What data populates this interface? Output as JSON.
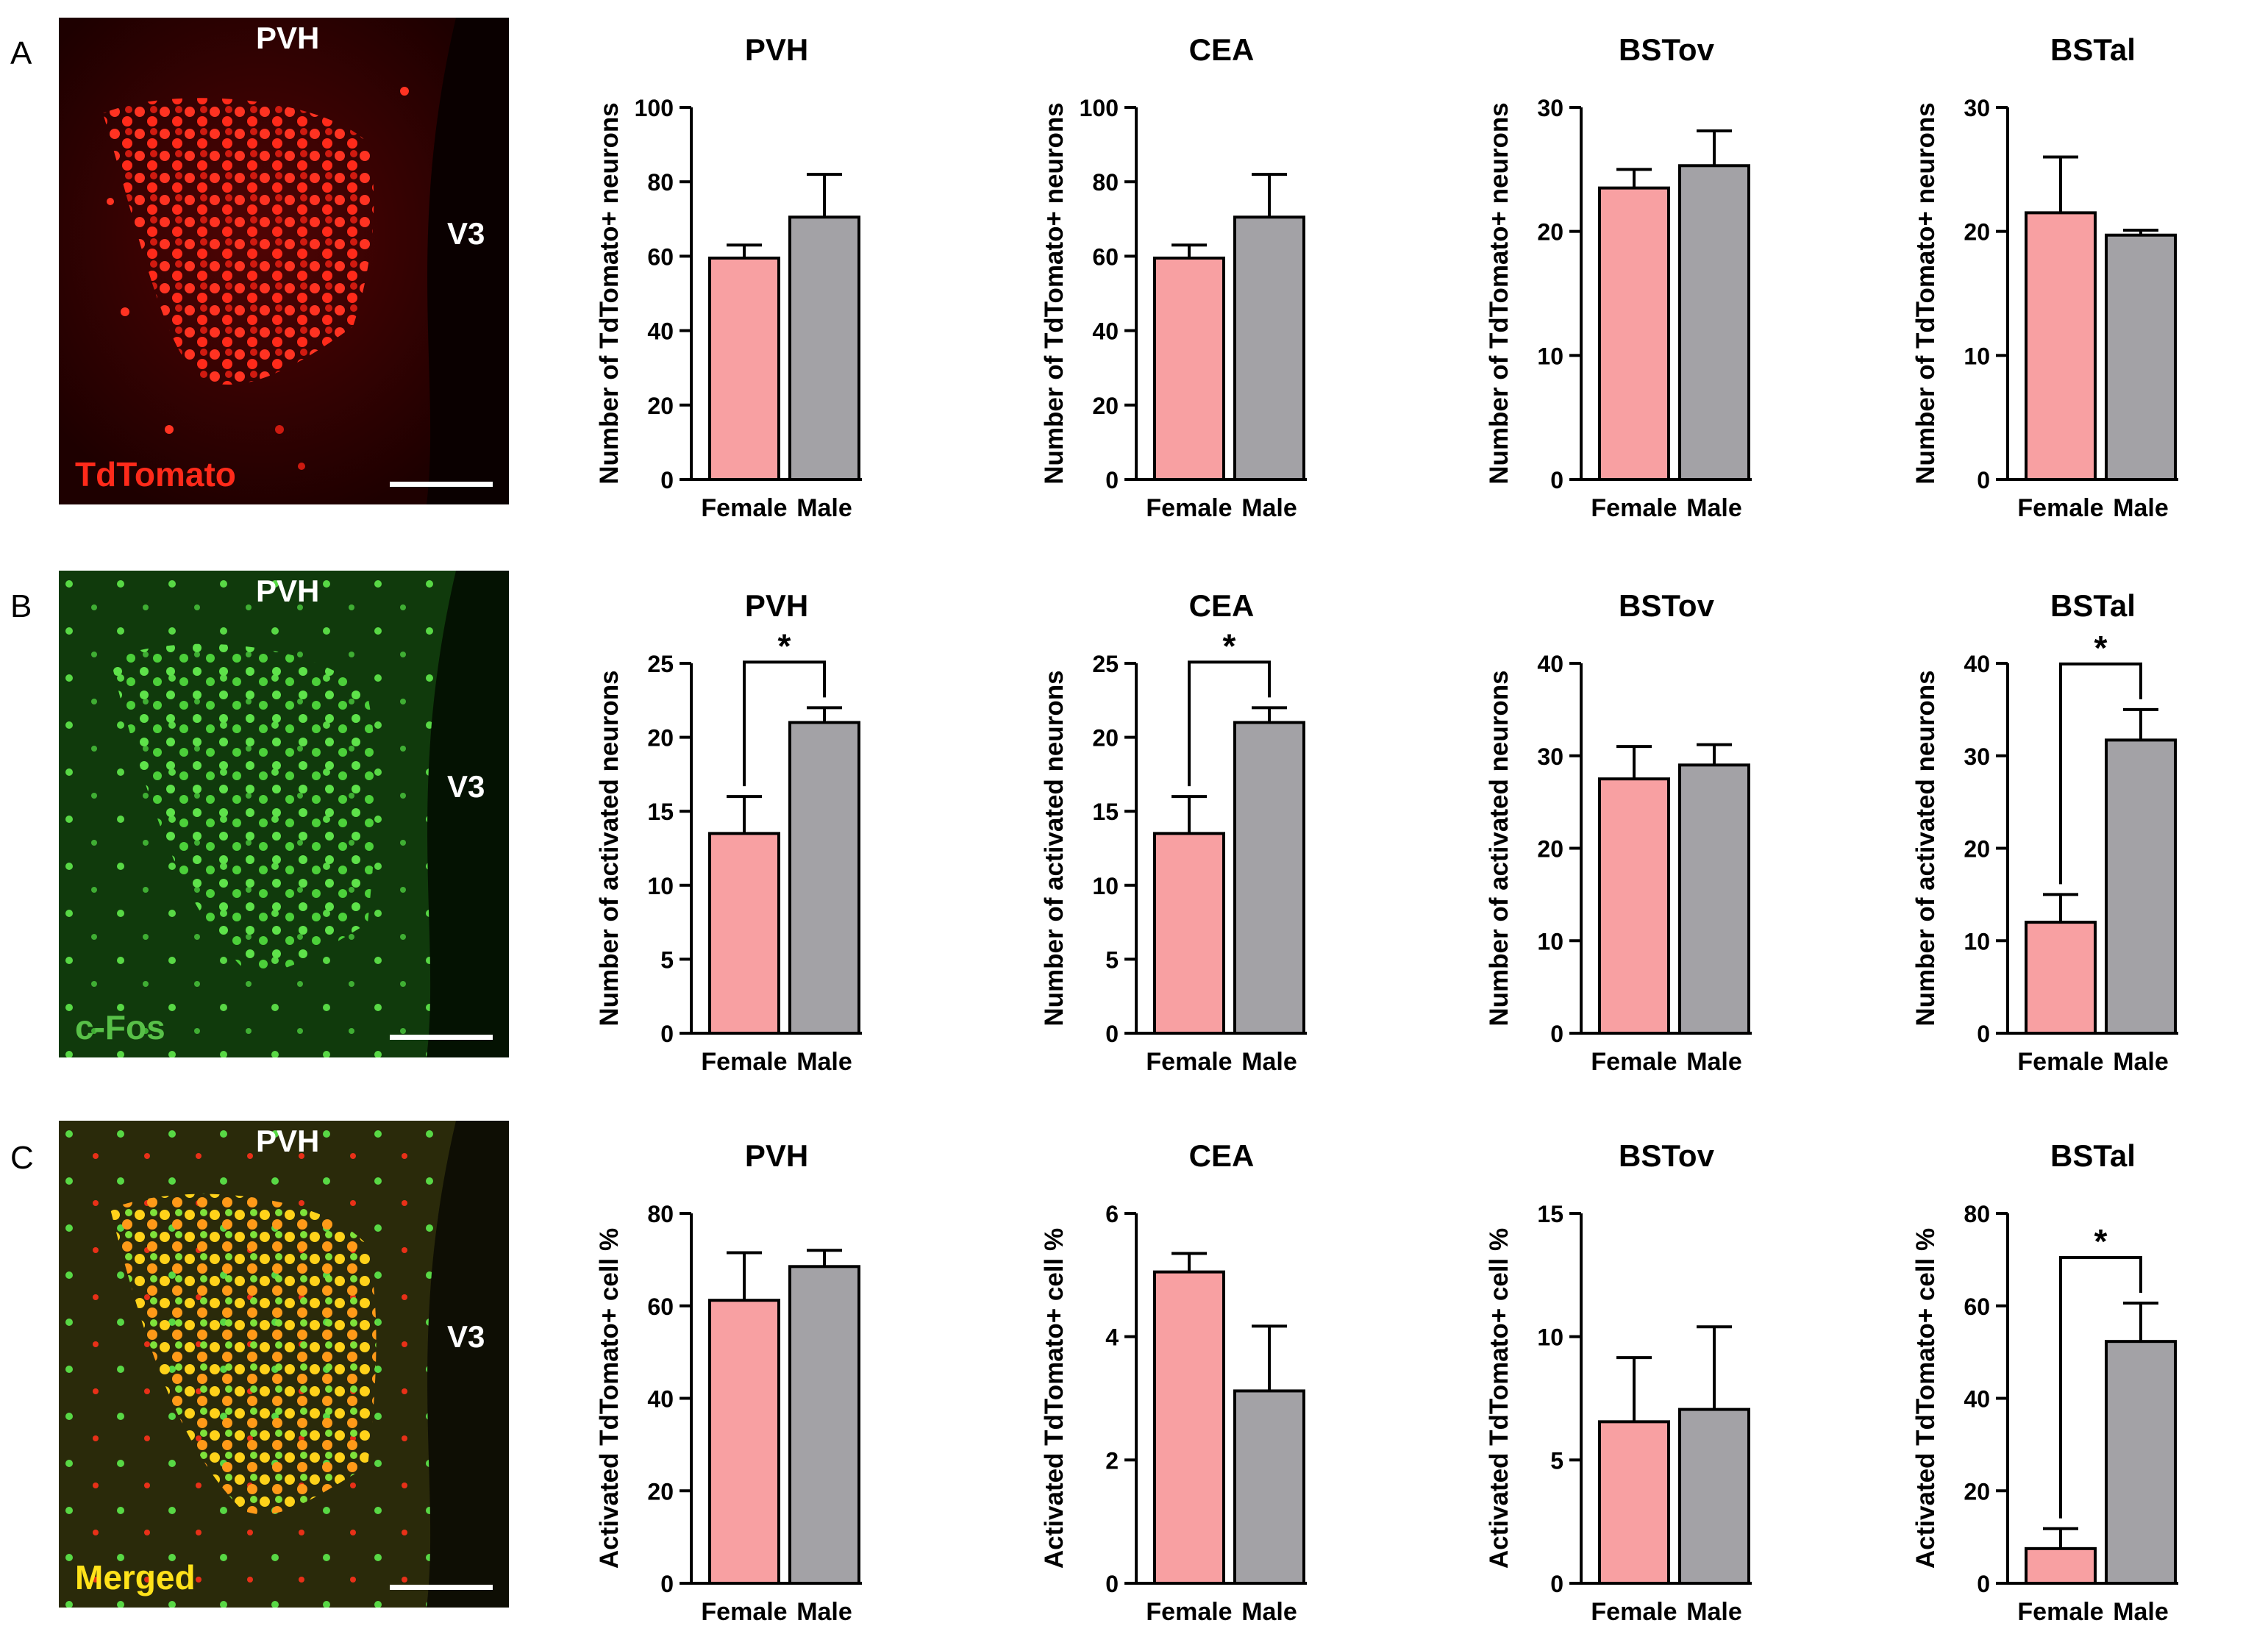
{
  "colors": {
    "female": "#f8a0a2",
    "male": "#a3a2a6",
    "axis": "#000000"
  },
  "rows": [
    {
      "letter": "A",
      "image": {
        "region_label": "PVH",
        "ventricle_label": "V3",
        "channel_label": "TdTomato",
        "channel_color": "#ff2a1a"
      },
      "charts": [
        {
          "title": "PVH",
          "ylabel": "Number of TdTomato+ neurons",
          "ylim": [
            0,
            100
          ],
          "ticks": [
            0,
            20,
            40,
            60,
            80,
            100
          ],
          "categories": [
            "Female",
            "Male"
          ],
          "values": [
            59.5,
            70.5
          ],
          "errors": [
            3.5,
            11.5
          ],
          "significance": ""
        },
        {
          "title": "CEA",
          "ylabel": "Number of TdTomato+ neurons",
          "ylim": [
            0,
            100
          ],
          "ticks": [
            0,
            20,
            40,
            60,
            80,
            100
          ],
          "categories": [
            "Female",
            "Male"
          ],
          "values": [
            59.5,
            70.5
          ],
          "errors": [
            3.5,
            11.5
          ],
          "significance": ""
        },
        {
          "title": "BSTov",
          "ylabel": "Number of TdTomato+ neurons",
          "ylim": [
            0,
            30
          ],
          "ticks": [
            0,
            10,
            20,
            30
          ],
          "categories": [
            "Female",
            "Male"
          ],
          "values": [
            23.5,
            25.3
          ],
          "errors": [
            1.5,
            2.8
          ],
          "significance": ""
        },
        {
          "title": "BSTal",
          "ylabel": "Number of TdTomato+ neurons",
          "ylim": [
            0,
            30
          ],
          "ticks": [
            0,
            10,
            20,
            30
          ],
          "categories": [
            "Female",
            "Male"
          ],
          "values": [
            21.5,
            19.7
          ],
          "errors": [
            4.5,
            0.4
          ],
          "significance": ""
        }
      ]
    },
    {
      "letter": "B",
      "image": {
        "region_label": "PVH",
        "ventricle_label": "V3",
        "channel_label": "c-Fos",
        "channel_color": "#58c048"
      },
      "charts": [
        {
          "title": "PVH",
          "ylabel": "Number of activated neurons",
          "ylim": [
            0,
            25
          ],
          "ticks": [
            0,
            5,
            10,
            15,
            20,
            25
          ],
          "categories": [
            "Female",
            "Male"
          ],
          "values": [
            13.5,
            21.0
          ],
          "errors": [
            2.5,
            1.0
          ],
          "significance": "*"
        },
        {
          "title": "CEA",
          "ylabel": "Number of activated neurons",
          "ylim": [
            0,
            25
          ],
          "ticks": [
            0,
            5,
            10,
            15,
            20,
            25
          ],
          "categories": [
            "Female",
            "Male"
          ],
          "values": [
            13.5,
            21.0
          ],
          "errors": [
            2.5,
            1.0
          ],
          "significance": "*"
        },
        {
          "title": "BSTov",
          "ylabel": "Number of activated neurons",
          "ylim": [
            0,
            40
          ],
          "ticks": [
            0,
            10,
            20,
            30,
            40
          ],
          "categories": [
            "Female",
            "Male"
          ],
          "values": [
            27.5,
            29.0
          ],
          "errors": [
            3.5,
            2.2
          ],
          "significance": ""
        },
        {
          "title": "BSTal",
          "ylabel": "Number of activated neurons",
          "ylim": [
            0,
            40
          ],
          "ticks": [
            0,
            10,
            20,
            30,
            40
          ],
          "categories": [
            "Female",
            "Male"
          ],
          "values": [
            12.0,
            31.7
          ],
          "errors": [
            3.0,
            3.3
          ],
          "significance": "*"
        }
      ]
    },
    {
      "letter": "C",
      "image": {
        "region_label": "PVH",
        "ventricle_label": "V3",
        "channel_label": "Merged",
        "channel_color": "#ffe21a"
      },
      "charts": [
        {
          "title": "PVH",
          "ylabel": "Activated TdTomato+ cell %",
          "ylim": [
            0,
            80
          ],
          "ticks": [
            0,
            20,
            40,
            60,
            80
          ],
          "categories": [
            "Female",
            "Male"
          ],
          "values": [
            61.2,
            68.5
          ],
          "errors": [
            10.3,
            3.5
          ],
          "significance": ""
        },
        {
          "title": "CEA",
          "ylabel": "Activated TdTomato+ cell %",
          "ylim": [
            0,
            6
          ],
          "ticks": [
            0,
            2,
            4,
            6
          ],
          "categories": [
            "Female",
            "Male"
          ],
          "values": [
            5.05,
            3.12
          ],
          "errors": [
            0.3,
            1.05
          ],
          "significance": ""
        },
        {
          "title": "BSTov",
          "ylabel": "Activated TdTomato+ cell %",
          "ylim": [
            0,
            15
          ],
          "ticks": [
            0,
            5,
            10,
            15
          ],
          "categories": [
            "Female",
            "Male"
          ],
          "values": [
            6.55,
            7.05
          ],
          "errors": [
            2.6,
            3.35
          ],
          "significance": ""
        },
        {
          "title": "BSTal",
          "ylabel": "Activated TdTomato+ cell %",
          "ylim": [
            0,
            80
          ],
          "ticks": [
            0,
            20,
            40,
            60,
            80
          ],
          "categories": [
            "Female",
            "Male"
          ],
          "values": [
            7.5,
            52.3
          ],
          "errors": [
            4.3,
            8.3
          ],
          "significance": "*"
        }
      ]
    }
  ],
  "chart_data": [
    {
      "type": "bar",
      "panel": "A",
      "title": "PVH",
      "ylabel": "Number of TdTomato+ neurons",
      "xlabel": "",
      "ylim": [
        0,
        100
      ],
      "categories": [
        "Female",
        "Male"
      ],
      "values": [
        59.5,
        70.5
      ],
      "errors": [
        3.5,
        11.5
      ]
    },
    {
      "type": "bar",
      "panel": "A",
      "title": "CEA",
      "ylabel": "Number of TdTomato+ neurons",
      "xlabel": "",
      "ylim": [
        0,
        100
      ],
      "categories": [
        "Female",
        "Male"
      ],
      "values": [
        59.5,
        70.5
      ],
      "errors": [
        3.5,
        11.5
      ]
    },
    {
      "type": "bar",
      "panel": "A",
      "title": "BSTov",
      "ylabel": "Number of TdTomato+ neurons",
      "xlabel": "",
      "ylim": [
        0,
        30
      ],
      "categories": [
        "Female",
        "Male"
      ],
      "values": [
        23.5,
        25.3
      ],
      "errors": [
        1.5,
        2.8
      ]
    },
    {
      "type": "bar",
      "panel": "A",
      "title": "BSTal",
      "ylabel": "Number of TdTomato+ neurons",
      "xlabel": "",
      "ylim": [
        0,
        30
      ],
      "categories": [
        "Female",
        "Male"
      ],
      "values": [
        21.5,
        19.7
      ],
      "errors": [
        4.5,
        0.4
      ]
    },
    {
      "type": "bar",
      "panel": "B",
      "title": "PVH",
      "ylabel": "Number of activated neurons",
      "xlabel": "",
      "ylim": [
        0,
        25
      ],
      "categories": [
        "Female",
        "Male"
      ],
      "values": [
        13.5,
        21.0
      ],
      "errors": [
        2.5,
        1.0
      ],
      "significance": "*"
    },
    {
      "type": "bar",
      "panel": "B",
      "title": "CEA",
      "ylabel": "Number of activated neurons",
      "xlabel": "",
      "ylim": [
        0,
        25
      ],
      "categories": [
        "Female",
        "Male"
      ],
      "values": [
        13.5,
        21.0
      ],
      "errors": [
        2.5,
        1.0
      ],
      "significance": "*"
    },
    {
      "type": "bar",
      "panel": "B",
      "title": "BSTov",
      "ylabel": "Number of activated neurons",
      "xlabel": "",
      "ylim": [
        0,
        40
      ],
      "categories": [
        "Female",
        "Male"
      ],
      "values": [
        27.5,
        29.0
      ],
      "errors": [
        3.5,
        2.2
      ]
    },
    {
      "type": "bar",
      "panel": "B",
      "title": "BSTal",
      "ylabel": "Number of activated neurons",
      "xlabel": "",
      "ylim": [
        0,
        40
      ],
      "categories": [
        "Female",
        "Male"
      ],
      "values": [
        12.0,
        31.7
      ],
      "errors": [
        3.0,
        3.3
      ],
      "significance": "*"
    },
    {
      "type": "bar",
      "panel": "C",
      "title": "PVH",
      "ylabel": "Activated TdTomato+ cell %",
      "xlabel": "",
      "ylim": [
        0,
        80
      ],
      "categories": [
        "Female",
        "Male"
      ],
      "values": [
        61.2,
        68.5
      ],
      "errors": [
        10.3,
        3.5
      ]
    },
    {
      "type": "bar",
      "panel": "C",
      "title": "CEA",
      "ylabel": "Activated TdTomato+ cell %",
      "xlabel": "",
      "ylim": [
        0,
        6
      ],
      "categories": [
        "Female",
        "Male"
      ],
      "values": [
        5.05,
        3.12
      ],
      "errors": [
        0.3,
        1.05
      ]
    },
    {
      "type": "bar",
      "panel": "C",
      "title": "BSTov",
      "ylabel": "Activated TdTomato+ cell %",
      "xlabel": "",
      "ylim": [
        0,
        15
      ],
      "categories": [
        "Female",
        "Male"
      ],
      "values": [
        6.55,
        7.05
      ],
      "errors": [
        2.6,
        3.35
      ]
    },
    {
      "type": "bar",
      "panel": "C",
      "title": "BSTal",
      "ylabel": "Activated TdTomato+ cell %",
      "xlabel": "",
      "ylim": [
        0,
        80
      ],
      "categories": [
        "Female",
        "Male"
      ],
      "values": [
        7.5,
        52.3
      ],
      "errors": [
        4.3,
        8.3
      ],
      "significance": "*"
    }
  ]
}
